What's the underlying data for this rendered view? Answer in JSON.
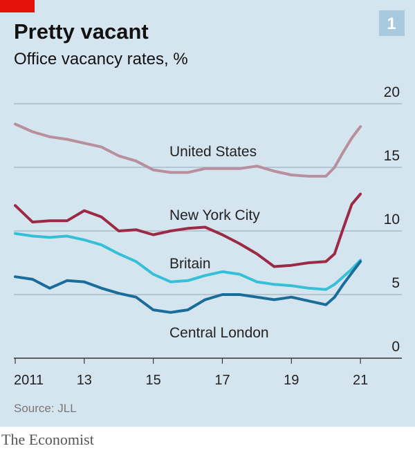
{
  "chart_data": {
    "type": "line",
    "title": "Pretty vacant",
    "subtitle": "Office vacancy rates, %",
    "chart_number": "1",
    "source": "Source: JLL",
    "brand": "The Economist",
    "x": [
      2011,
      2011.5,
      2012,
      2012.5,
      2013,
      2013.5,
      2014,
      2014.5,
      2015,
      2015.5,
      2016,
      2016.5,
      2017,
      2017.5,
      2018,
      2018.5,
      2019,
      2019.5,
      2020,
      2020.25,
      2020.5,
      2020.75,
      2021
    ],
    "series": [
      {
        "name": "United States",
        "color": "#b88f9c",
        "values": [
          18.4,
          17.8,
          17.4,
          17.2,
          16.9,
          16.6,
          15.9,
          15.5,
          14.8,
          14.6,
          14.6,
          14.9,
          14.9,
          14.9,
          15.1,
          14.7,
          14.4,
          14.3,
          14.3,
          15.0,
          16.2,
          17.3,
          18.2
        ]
      },
      {
        "name": "New York City",
        "color": "#9b2a45",
        "values": [
          12.0,
          10.7,
          10.8,
          10.8,
          11.6,
          11.1,
          10.0,
          10.1,
          9.7,
          10.0,
          10.2,
          10.3,
          9.7,
          9.0,
          8.2,
          7.2,
          7.3,
          7.5,
          7.6,
          8.2,
          10.2,
          12.1,
          12.9
        ]
      },
      {
        "name": "Britain",
        "color": "#36c0d7",
        "values": [
          9.8,
          9.6,
          9.5,
          9.6,
          9.3,
          8.9,
          8.2,
          7.6,
          6.6,
          6.0,
          6.1,
          6.5,
          6.8,
          6.6,
          6.0,
          5.8,
          5.7,
          5.5,
          5.4,
          5.8,
          6.4,
          7.0,
          7.7
        ]
      },
      {
        "name": "Central London",
        "color": "#1a6d9a",
        "values": [
          6.4,
          6.2,
          5.5,
          6.1,
          6.0,
          5.5,
          5.1,
          4.8,
          3.8,
          3.6,
          3.8,
          4.6,
          5.0,
          5.0,
          4.8,
          4.6,
          4.8,
          4.5,
          4.2,
          4.8,
          5.8,
          6.7,
          7.6
        ]
      }
    ],
    "xlim": [
      2011,
      2022.2
    ],
    "xticks": [
      {
        "value": 2011,
        "label": "2011"
      },
      {
        "value": 2013,
        "label": "13"
      },
      {
        "value": 2015,
        "label": "15"
      },
      {
        "value": 2017,
        "label": "17"
      },
      {
        "value": 2019,
        "label": "19"
      },
      {
        "value": 2021,
        "label": "21"
      }
    ],
    "ylim": [
      0,
      20
    ],
    "yticks": [
      0,
      5,
      10,
      15,
      20
    ],
    "grid": true
  }
}
